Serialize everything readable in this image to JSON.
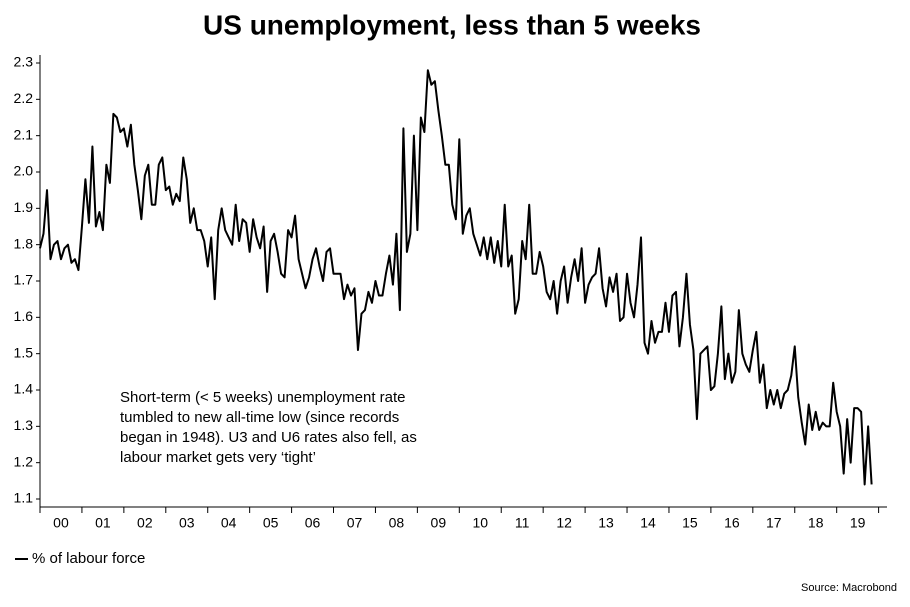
{
  "chart_data": {
    "type": "line",
    "title": "US unemployment, less than 5 weeks",
    "annotation": [
      "Short-term (< 5 weeks) unemployment rate",
      "tumbled to new all-time low (since records",
      "began in 1948). U3 and U6 rates also fell, as",
      "labour market gets very ‘tight’"
    ],
    "source": "Source: Macrobond",
    "legend": "bottom-left",
    "grid": false,
    "xlim": [
      2000,
      2020.2
    ],
    "ylim": [
      1.078,
      2.322
    ],
    "yticks": [
      1.1,
      1.2,
      1.3,
      1.4,
      1.5,
      1.6,
      1.7,
      1.8,
      1.9,
      {
        "value": 2,
        "label": "2.0"
      },
      2.1,
      2.2,
      2.3
    ],
    "xticks": [
      {
        "value": 2000.5,
        "label": "00"
      },
      {
        "value": 2001.5,
        "label": "01"
      },
      {
        "value": 2002.5,
        "label": "02"
      },
      {
        "value": 2003.5,
        "label": "03"
      },
      {
        "value": 2004.5,
        "label": "04"
      },
      {
        "value": 2005.5,
        "label": "05"
      },
      {
        "value": 2006.5,
        "label": "06"
      },
      {
        "value": 2007.5,
        "label": "07"
      },
      {
        "value": 2008.5,
        "label": "08"
      },
      {
        "value": 2009.5,
        "label": "09"
      },
      {
        "value": 2010.5,
        "label": "10"
      },
      {
        "value": 2011.5,
        "label": "11"
      },
      {
        "value": 2012.5,
        "label": "12"
      },
      {
        "value": 2013.5,
        "label": "13"
      },
      {
        "value": 2014.5,
        "label": "14"
      },
      {
        "value": 2015.5,
        "label": "15"
      },
      {
        "value": 2016.5,
        "label": "16"
      },
      {
        "value": 2017.5,
        "label": "17"
      },
      {
        "value": 2018.5,
        "label": "18"
      },
      {
        "value": 2019.5,
        "label": "19"
      }
    ],
    "xticks_minor": [
      2000,
      2001,
      2002,
      2003,
      2004,
      2005,
      2006,
      2007,
      2008,
      2009,
      2010,
      2011,
      2012,
      2013,
      2014,
      2015,
      2016,
      2017,
      2018,
      2019,
      2020
    ],
    "x": [
      2000,
      2000.083,
      2000.167,
      2000.25,
      2000.333,
      2000.417,
      2000.5,
      2000.583,
      2000.667,
      2000.75,
      2000.833,
      2000.917,
      2001,
      2001.083,
      2001.167,
      2001.25,
      2001.333,
      2001.417,
      2001.5,
      2001.583,
      2001.667,
      2001.75,
      2001.833,
      2001.917,
      2002,
      2002.083,
      2002.167,
      2002.25,
      2002.333,
      2002.417,
      2002.5,
      2002.583,
      2002.667,
      2002.75,
      2002.833,
      2002.917,
      2003,
      2003.083,
      2003.167,
      2003.25,
      2003.333,
      2003.417,
      2003.5,
      2003.583,
      2003.667,
      2003.75,
      2003.833,
      2003.917,
      2004,
      2004.083,
      2004.167,
      2004.25,
      2004.333,
      2004.417,
      2004.5,
      2004.583,
      2004.667,
      2004.75,
      2004.833,
      2004.917,
      2005,
      2005.083,
      2005.167,
      2005.25,
      2005.333,
      2005.417,
      2005.5,
      2005.583,
      2005.667,
      2005.75,
      2005.833,
      2005.917,
      2006,
      2006.083,
      2006.167,
      2006.25,
      2006.333,
      2006.417,
      2006.5,
      2006.583,
      2006.667,
      2006.75,
      2006.833,
      2006.917,
      2007,
      2007.083,
      2007.167,
      2007.25,
      2007.333,
      2007.417,
      2007.5,
      2007.583,
      2007.667,
      2007.75,
      2007.833,
      2007.917,
      2008,
      2008.083,
      2008.167,
      2008.25,
      2008.333,
      2008.417,
      2008.5,
      2008.583,
      2008.667,
      2008.75,
      2008.833,
      2008.917,
      2009,
      2009.083,
      2009.167,
      2009.25,
      2009.333,
      2009.417,
      2009.5,
      2009.583,
      2009.667,
      2009.75,
      2009.833,
      2009.917,
      2010,
      2010.083,
      2010.167,
      2010.25,
      2010.333,
      2010.417,
      2010.5,
      2010.583,
      2010.667,
      2010.75,
      2010.833,
      2010.917,
      2011,
      2011.083,
      2011.167,
      2011.25,
      2011.333,
      2011.417,
      2011.5,
      2011.583,
      2011.667,
      2011.75,
      2011.833,
      2011.917,
      2012,
      2012.083,
      2012.167,
      2012.25,
      2012.333,
      2012.417,
      2012.5,
      2012.583,
      2012.667,
      2012.75,
      2012.833,
      2012.917,
      2013,
      2013.083,
      2013.167,
      2013.25,
      2013.333,
      2013.417,
      2013.5,
      2013.583,
      2013.667,
      2013.75,
      2013.833,
      2013.917,
      2014,
      2014.083,
      2014.167,
      2014.25,
      2014.333,
      2014.417,
      2014.5,
      2014.583,
      2014.667,
      2014.75,
      2014.833,
      2014.917,
      2015,
      2015.083,
      2015.167,
      2015.25,
      2015.333,
      2015.417,
      2015.5,
      2015.583,
      2015.667,
      2015.75,
      2015.833,
      2015.917,
      2016,
      2016.083,
      2016.167,
      2016.25,
      2016.333,
      2016.417,
      2016.5,
      2016.583,
      2016.667,
      2016.75,
      2016.833,
      2016.917,
      2017,
      2017.083,
      2017.167,
      2017.25,
      2017.333,
      2017.417,
      2017.5,
      2017.583,
      2017.667,
      2017.75,
      2017.833,
      2017.917,
      2018,
      2018.083,
      2018.167,
      2018.25,
      2018.333,
      2018.417,
      2018.5,
      2018.583,
      2018.667,
      2018.75,
      2018.833,
      2018.917,
      2019,
      2019.083,
      2019.167,
      2019.25,
      2019.333,
      2019.417,
      2019.5,
      2019.583,
      2019.667,
      2019.75,
      2019.833
    ],
    "series": [
      {
        "name": "% of labour force",
        "color": "#000000",
        "values": [
          1.79,
          1.83,
          1.95,
          1.76,
          1.8,
          1.81,
          1.76,
          1.79,
          1.8,
          1.75,
          1.76,
          1.73,
          1.85,
          1.98,
          1.86,
          2.07,
          1.85,
          1.89,
          1.84,
          2.02,
          1.97,
          2.16,
          2.15,
          2.11,
          2.12,
          2.07,
          2.13,
          2.02,
          1.95,
          1.87,
          1.99,
          2.02,
          1.91,
          1.91,
          2.02,
          2.04,
          1.95,
          1.96,
          1.91,
          1.94,
          1.92,
          2.04,
          1.98,
          1.86,
          1.9,
          1.84,
          1.84,
          1.81,
          1.74,
          1.82,
          1.65,
          1.84,
          1.9,
          1.84,
          1.82,
          1.8,
          1.91,
          1.81,
          1.87,
          1.86,
          1.78,
          1.87,
          1.82,
          1.79,
          1.85,
          1.67,
          1.81,
          1.83,
          1.78,
          1.72,
          1.71,
          1.84,
          1.82,
          1.88,
          1.76,
          1.72,
          1.68,
          1.71,
          1.76,
          1.79,
          1.74,
          1.7,
          1.78,
          1.79,
          1.72,
          1.72,
          1.72,
          1.65,
          1.69,
          1.66,
          1.68,
          1.51,
          1.61,
          1.62,
          1.67,
          1.64,
          1.7,
          1.66,
          1.66,
          1.72,
          1.77,
          1.69,
          1.83,
          1.62,
          2.12,
          1.78,
          1.83,
          2.1,
          1.84,
          2.15,
          2.11,
          2.28,
          2.24,
          2.25,
          2.17,
          2.1,
          2.02,
          2.02,
          1.91,
          1.87,
          2.09,
          1.83,
          1.88,
          1.9,
          1.83,
          1.8,
          1.77,
          1.82,
          1.76,
          1.82,
          1.75,
          1.81,
          1.74,
          1.91,
          1.74,
          1.77,
          1.61,
          1.65,
          1.81,
          1.76,
          1.91,
          1.72,
          1.72,
          1.78,
          1.74,
          1.67,
          1.65,
          1.7,
          1.61,
          1.7,
          1.74,
          1.64,
          1.71,
          1.76,
          1.7,
          1.79,
          1.64,
          1.69,
          1.71,
          1.72,
          1.79,
          1.68,
          1.63,
          1.71,
          1.67,
          1.72,
          1.59,
          1.6,
          1.72,
          1.64,
          1.6,
          1.69,
          1.82,
          1.53,
          1.5,
          1.59,
          1.53,
          1.56,
          1.56,
          1.64,
          1.56,
          1.66,
          1.67,
          1.52,
          1.6,
          1.72,
          1.58,
          1.51,
          1.32,
          1.5,
          1.51,
          1.52,
          1.4,
          1.41,
          1.5,
          1.63,
          1.43,
          1.5,
          1.42,
          1.45,
          1.62,
          1.5,
          1.47,
          1.45,
          1.51,
          1.56,
          1.42,
          1.47,
          1.35,
          1.4,
          1.36,
          1.4,
          1.35,
          1.39,
          1.4,
          1.44,
          1.52,
          1.38,
          1.31,
          1.25,
          1.36,
          1.29,
          1.34,
          1.29,
          1.31,
          1.3,
          1.3,
          1.42,
          1.34,
          1.3,
          1.17,
          1.32,
          1.2,
          1.35,
          1.35,
          1.34,
          1.14,
          1.3,
          1.14
        ]
      }
    ]
  }
}
